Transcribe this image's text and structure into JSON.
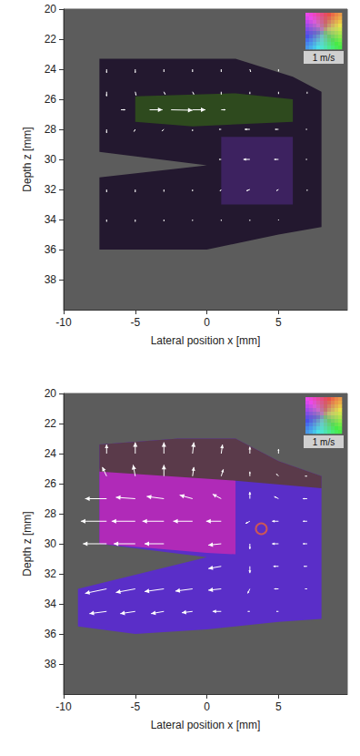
{
  "chart_data": [
    {
      "type": "quiver",
      "x_label": "Lateral position x [mm]",
      "y_label": "Depth z [mm]",
      "xlim": [
        -10,
        9.8
      ],
      "xticks": [
        -10,
        -5,
        0,
        5
      ],
      "ylim": [
        20,
        40
      ],
      "yticks": [
        20,
        22,
        24,
        26,
        28,
        30,
        32,
        34,
        36,
        38
      ],
      "scale_label": "1 m/s",
      "scale_value": 1,
      "regions": [
        {
          "color": "#23182f",
          "points": [
            [
              -7.5,
              23.3
            ],
            [
              2,
              23.3
            ],
            [
              6,
              24.5
            ],
            [
              8,
              25.5
            ],
            [
              8,
              34.5
            ],
            [
              5,
              35
            ],
            [
              0,
              36
            ],
            [
              -7.5,
              36
            ],
            [
              -7.5,
              31.2
            ],
            [
              0,
              30.4
            ],
            [
              -7.5,
              29.5
            ]
          ]
        },
        {
          "color": "#2e4a1e",
          "points": [
            [
              -5,
              25.8
            ],
            [
              2,
              25.6
            ],
            [
              6,
              26
            ],
            [
              6,
              27.5
            ],
            [
              -1,
              27.8
            ],
            [
              -5,
              27.5
            ]
          ]
        },
        {
          "color": "#3d2260",
          "points": [
            [
              1,
              28.5
            ],
            [
              6,
              28.5
            ],
            [
              6,
              33
            ],
            [
              1,
              33
            ]
          ]
        }
      ],
      "vectors": {
        "color": "#ffffff",
        "values": [
          [
            -7,
            24,
            0,
            0.08
          ],
          [
            -5,
            24,
            0,
            0.08
          ],
          [
            -3,
            24,
            0,
            0.06
          ],
          [
            -1,
            24,
            0,
            0.06
          ],
          [
            1,
            24,
            0,
            0.06
          ],
          [
            3,
            24,
            0.02,
            0.06
          ],
          [
            5,
            24,
            0,
            0.05
          ],
          [
            -7,
            25.5,
            0,
            0.1
          ],
          [
            -5,
            25.5,
            0.02,
            0.08
          ],
          [
            -3,
            25.5,
            0.03,
            0.06
          ],
          [
            -1,
            25.5,
            0.03,
            0.06
          ],
          [
            1,
            25.5,
            0,
            0.06
          ],
          [
            3,
            25.5,
            0,
            0.05
          ],
          [
            5,
            25.5,
            0,
            0.05
          ],
          [
            7,
            25.5,
            0,
            0.04
          ],
          [
            -6,
            26.7,
            0.1,
            0
          ],
          [
            -4,
            26.7,
            0.3,
            0
          ],
          [
            -2.5,
            26.7,
            0.5,
            0.01
          ],
          [
            -1,
            26.7,
            0.3,
            0
          ],
          [
            1,
            26.7,
            0.1,
            0
          ],
          [
            -7,
            28,
            0,
            0.08
          ],
          [
            -5,
            28,
            -0.03,
            0.05
          ],
          [
            -3,
            28,
            -0.05,
            0.04
          ],
          [
            -1,
            28,
            0,
            0.04
          ],
          [
            1,
            28,
            -0.05,
            0
          ],
          [
            3,
            28,
            -0.12,
            0
          ],
          [
            5,
            28,
            -0.08,
            0
          ],
          [
            7,
            28,
            -0.03,
            0
          ],
          [
            1,
            30,
            -0.05,
            0
          ],
          [
            3,
            30,
            -0.15,
            0
          ],
          [
            5,
            30,
            -0.1,
            0
          ],
          [
            7,
            30,
            -0.03,
            0
          ],
          [
            -7,
            32,
            0,
            0.06
          ],
          [
            -5,
            32,
            0,
            0.06
          ],
          [
            -3,
            32,
            0,
            0.05
          ],
          [
            -1,
            32,
            0,
            0.04
          ],
          [
            1,
            32,
            -0.03,
            0.04
          ],
          [
            3,
            32,
            -0.08,
            0.03
          ],
          [
            5,
            32,
            -0.05,
            0.03
          ],
          [
            7,
            32,
            0,
            0.03
          ],
          [
            -7,
            34,
            0,
            0.05
          ],
          [
            -5,
            34,
            0,
            0.05
          ],
          [
            -3,
            34,
            0,
            0.04
          ],
          [
            -1,
            34,
            0,
            0.03
          ],
          [
            1,
            34,
            0,
            0.03
          ],
          [
            3,
            34,
            0,
            0.03
          ],
          [
            5,
            34,
            0,
            0.02
          ]
        ]
      }
    },
    {
      "type": "quiver",
      "x_label": "Lateral position x [mm]",
      "y_label": "Depth z [mm]",
      "xlim": [
        -10,
        9.8
      ],
      "xticks": [
        -10,
        -5,
        0,
        5
      ],
      "ylim": [
        20,
        40
      ],
      "yticks": [
        20,
        22,
        24,
        26,
        28,
        30,
        32,
        34,
        36,
        38
      ],
      "scale_label": "1 m/s",
      "scale_value": 1,
      "regions": [
        {
          "color": "#5a2ec8",
          "points": [
            [
              -7.5,
              23.4
            ],
            [
              -2,
              23
            ],
            [
              2,
              23
            ],
            [
              5,
              24.5
            ],
            [
              8,
              25.5
            ],
            [
              8,
              35
            ],
            [
              5,
              35.2
            ],
            [
              0,
              35.7
            ],
            [
              -5,
              36
            ],
            [
              -9,
              35.5
            ],
            [
              -9,
              33
            ],
            [
              0,
              30.9
            ],
            [
              -7.5,
              30
            ]
          ]
        },
        {
          "color": "#b02ab8",
          "points": [
            [
              -7.5,
              25
            ],
            [
              2,
              25.5
            ],
            [
              2,
              30.7
            ],
            [
              0,
              30.6
            ],
            [
              -7.5,
              30
            ]
          ]
        },
        {
          "color": "#5a3a4a",
          "points": [
            [
              -7.5,
              23.4
            ],
            [
              -2,
              23
            ],
            [
              2,
              23
            ],
            [
              5,
              24.5
            ],
            [
              8,
              25.5
            ],
            [
              8,
              26.3
            ],
            [
              2,
              25.8
            ],
            [
              -7.5,
              25.2
            ]
          ]
        }
      ],
      "vectors": {
        "color": "#ffffff",
        "values": [
          [
            -7,
            24,
            0,
            -0.2
          ],
          [
            -5,
            24,
            0,
            -0.25
          ],
          [
            -3,
            24,
            0,
            -0.25
          ],
          [
            -1,
            24,
            0.03,
            -0.25
          ],
          [
            1,
            24,
            0.03,
            -0.2
          ],
          [
            3,
            24,
            0,
            -0.15
          ],
          [
            5,
            24,
            0,
            -0.1
          ],
          [
            -7,
            25.5,
            -0.1,
            -0.2
          ],
          [
            -5,
            25.5,
            -0.05,
            -0.25
          ],
          [
            -3,
            25.5,
            0,
            -0.25
          ],
          [
            -1,
            25.5,
            0.03,
            -0.2
          ],
          [
            1,
            25.5,
            0.05,
            -0.15
          ],
          [
            3,
            25.5,
            0,
            -0.1
          ],
          [
            5,
            25.5,
            -0.05,
            -0.05
          ],
          [
            7,
            25.5,
            -0.05,
            0
          ],
          [
            -7,
            27,
            -0.5,
            0
          ],
          [
            -5,
            27,
            -0.45,
            -0.03
          ],
          [
            -3,
            27,
            -0.4,
            -0.05
          ],
          [
            -1,
            27,
            -0.3,
            -0.08
          ],
          [
            1,
            27,
            -0.2,
            -0.1
          ],
          [
            3,
            27,
            0,
            -0.15
          ],
          [
            5,
            27,
            -0.1,
            -0.05
          ],
          [
            7,
            27,
            -0.1,
            0
          ],
          [
            -7,
            28.5,
            -0.6,
            0
          ],
          [
            -5,
            28.5,
            -0.55,
            0
          ],
          [
            -3,
            28.5,
            -0.5,
            0
          ],
          [
            -1,
            28.5,
            -0.45,
            0
          ],
          [
            1,
            28.5,
            -0.35,
            0
          ],
          [
            3,
            28.5,
            -0.1,
            0.05
          ],
          [
            5,
            28.5,
            -0.15,
            0
          ],
          [
            7,
            28.5,
            -0.1,
            0
          ],
          [
            -7,
            30,
            -0.55,
            0
          ],
          [
            -5,
            30,
            -0.5,
            0
          ],
          [
            -3,
            30,
            -0.45,
            0
          ],
          [
            1,
            30,
            -0.3,
            0.03
          ],
          [
            3,
            30,
            0,
            0.12
          ],
          [
            5,
            30,
            -0.15,
            0
          ],
          [
            7,
            30,
            -0.1,
            0
          ],
          [
            1,
            31.5,
            -0.3,
            0.05
          ],
          [
            3,
            31.5,
            0,
            0.15
          ],
          [
            5,
            31.5,
            -0.12,
            0
          ],
          [
            7,
            31.5,
            -0.08,
            0
          ],
          [
            -7,
            33,
            -0.5,
            0.1
          ],
          [
            -5,
            33,
            -0.45,
            0.08
          ],
          [
            -3,
            33,
            -0.45,
            0.06
          ],
          [
            -1,
            33,
            -0.4,
            0.05
          ],
          [
            1,
            33,
            -0.3,
            0.03
          ],
          [
            3,
            33,
            -0.05,
            0.1
          ],
          [
            5,
            33,
            -0.1,
            0
          ],
          [
            7,
            33,
            -0.05,
            0
          ],
          [
            -7,
            34.5,
            -0.4,
            0.05
          ],
          [
            -5,
            34.5,
            -0.35,
            0.05
          ],
          [
            -3,
            34.5,
            -0.3,
            0.05
          ],
          [
            -1,
            34.5,
            -0.25,
            0.03
          ],
          [
            1,
            34.5,
            -0.2,
            0
          ],
          [
            3,
            34.5,
            -0.05,
            0
          ],
          [
            5,
            34.5,
            -0.05,
            0
          ]
        ]
      },
      "circles": {
        "color": "#e8603a",
        "values": [
          [
            3.8,
            29
          ]
        ]
      }
    }
  ]
}
